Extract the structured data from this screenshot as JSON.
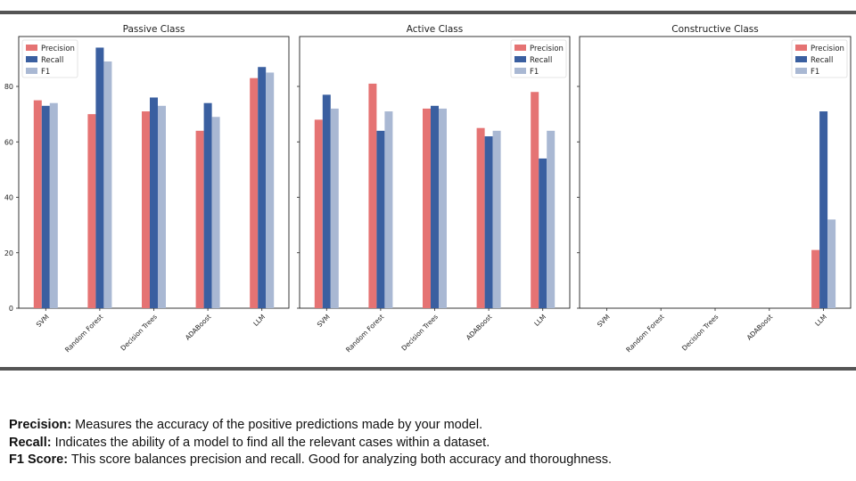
{
  "chart_data": [
    {
      "type": "bar",
      "title": "Passive Class",
      "categories": [
        "SVM",
        "Random Forest",
        "Decision Trees",
        "ADABoost",
        "LLM"
      ],
      "series": [
        {
          "name": "Precision",
          "values": [
            75,
            70,
            71,
            64,
            83
          ]
        },
        {
          "name": "Recall",
          "values": [
            73,
            94,
            76,
            74,
            87
          ]
        },
        {
          "name": "F1",
          "values": [
            74,
            89,
            73,
            69,
            85
          ]
        }
      ],
      "yticks": [
        "0",
        "20",
        "40",
        "60",
        "80"
      ],
      "ylim": [
        0,
        98
      ],
      "legend": "top-left",
      "grid": false
    },
    {
      "type": "bar",
      "title": "Active Class",
      "categories": [
        "SVM",
        "Random Forest",
        "Decision Trees",
        "ADABoost",
        "LLM"
      ],
      "series": [
        {
          "name": "Precision",
          "values": [
            68,
            81,
            72,
            65,
            78
          ]
        },
        {
          "name": "Recall",
          "values": [
            77,
            64,
            73,
            62,
            54
          ]
        },
        {
          "name": "F1",
          "values": [
            72,
            71,
            72,
            64,
            64
          ]
        }
      ],
      "yticks": [
        "0",
        "20",
        "40",
        "60",
        "80"
      ],
      "ylim": [
        0,
        98
      ],
      "legend": "top-right",
      "grid": false
    },
    {
      "type": "bar",
      "title": "Constructive Class",
      "categories": [
        "SVM",
        "Random Forest",
        "Decision Trees",
        "ADABoost",
        "LLM"
      ],
      "series": [
        {
          "name": "Precision",
          "values": [
            0,
            0,
            0,
            0,
            21
          ]
        },
        {
          "name": "Recall",
          "values": [
            0,
            0,
            0,
            0,
            71
          ]
        },
        {
          "name": "F1",
          "values": [
            0,
            0,
            0,
            0,
            32
          ]
        }
      ],
      "yticks": [
        "0",
        "20",
        "40",
        "60",
        "80"
      ],
      "ylim": [
        0,
        98
      ],
      "legend": "top-right",
      "grid": false
    }
  ],
  "series_colors": {
    "Precision": "#e57373",
    "Recall": "#3a5fa0",
    "F1": "#a9b8d3"
  },
  "definitions": [
    {
      "term": "Precision:",
      "text": " Measures the accuracy of the positive predictions made by your model."
    },
    {
      "term": "Recall:",
      "text": " Indicates the ability of a model to find all the relevant cases within a dataset."
    },
    {
      "term": "F1 Score:",
      "text": " This score balances precision and recall. Good for analyzing both accuracy and thoroughness."
    }
  ]
}
